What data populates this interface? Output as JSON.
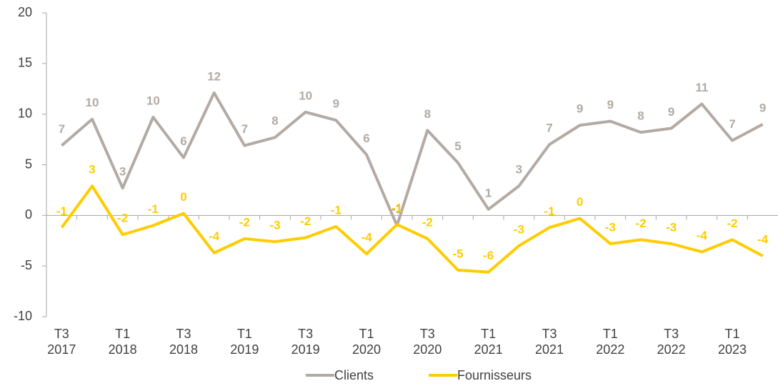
{
  "chart_data": {
    "type": "line",
    "categories": [
      [
        "T3",
        "2017"
      ],
      null,
      [
        "T1",
        "2018"
      ],
      null,
      [
        "T3",
        "2018"
      ],
      null,
      [
        "T1",
        "2019"
      ],
      null,
      [
        "T3",
        "2019"
      ],
      null,
      [
        "T1",
        "2020"
      ],
      null,
      [
        "T3",
        "2020"
      ],
      null,
      [
        "T1",
        "2021"
      ],
      null,
      [
        "T3",
        "2021"
      ],
      null,
      [
        "T1",
        "2022"
      ],
      null,
      [
        "T3",
        "2022"
      ],
      null,
      [
        "T1",
        "2023"
      ],
      null
    ],
    "series": [
      {
        "name": "Clients",
        "color": "#b3aaa3",
        "values": [
          6.9,
          9.5,
          2.7,
          9.7,
          5.7,
          12.1,
          6.9,
          7.7,
          10.2,
          9.4,
          6.0,
          -1.0,
          8.4,
          5.2,
          0.6,
          2.9,
          7.0,
          8.9,
          9.3,
          8.2,
          8.6,
          11.0,
          7.4,
          9.0
        ],
        "value_labels": [
          "7",
          "10",
          "3",
          "10",
          "6",
          "12",
          "7",
          "8",
          "10",
          "9",
          "6",
          "-1",
          "8",
          "5",
          "1",
          "3",
          "7",
          "9",
          "9",
          "8",
          "9",
          "11",
          "7",
          "9"
        ]
      },
      {
        "name": "Fournisseurs",
        "color": "#ffcc00",
        "values": [
          -1.2,
          2.9,
          -1.9,
          -1.0,
          0.2,
          -3.7,
          -2.3,
          -2.6,
          -2.2,
          -1.1,
          -3.8,
          -0.9,
          -2.3,
          -5.4,
          -5.6,
          -3.0,
          -1.2,
          -0.3,
          -2.8,
          -2.4,
          -2.8,
          -3.6,
          -2.4,
          -4.0
        ],
        "value_labels": [
          "-1",
          "3",
          "-2",
          "-1",
          "0",
          "-4",
          "-2",
          "-3",
          "-2",
          "-1",
          "-4",
          "-1",
          "-2",
          "-5",
          "-6",
          "-3",
          "-1",
          "0",
          "-3",
          "-2",
          "-3",
          "-4",
          "-2",
          "-4"
        ]
      }
    ],
    "ylim": [
      -10,
      20
    ],
    "yticks": [
      -10,
      -5,
      0,
      5,
      10,
      15,
      20
    ],
    "grid": false,
    "legend": "bottom"
  }
}
